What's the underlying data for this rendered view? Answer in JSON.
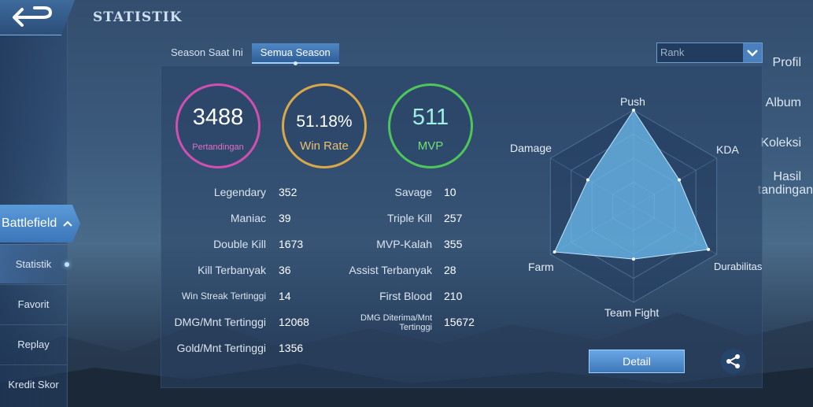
{
  "page_title": "STATISTIK",
  "sidebar": {
    "items": [
      {
        "label": "Profil"
      },
      {
        "label": "Album"
      },
      {
        "label": "Koleksi"
      },
      {
        "label_line1": "Hasil",
        "label_line2": "tandingan"
      }
    ],
    "battlefield": "Battlefield",
    "sub_items": [
      "Statistik",
      "Favorit",
      "Replay",
      "Kredit Skor"
    ]
  },
  "tabs": [
    "Season Saat Ini",
    "Semua Season"
  ],
  "rank_select": {
    "value": "Rank"
  },
  "rings": [
    {
      "value": "3488",
      "label": "Pertandingan",
      "color": "#d04fb0"
    },
    {
      "value": "51.18%",
      "label": "Win Rate",
      "color": "#d8a84a"
    },
    {
      "value": "511",
      "label": "MVP",
      "color": "#4fc65a"
    }
  ],
  "stats_left": [
    {
      "label": "Legendary",
      "value": "352"
    },
    {
      "label": "Maniac",
      "value": "39"
    },
    {
      "label": "Double Kill",
      "value": "1673"
    },
    {
      "label": "Kill Terbanyak",
      "value": "36"
    },
    {
      "label": "Win Streak Tertinggi",
      "value": "14"
    },
    {
      "label": "DMG/Mnt Tertinggi",
      "value": "12068"
    },
    {
      "label": "Gold/Mnt Tertinggi",
      "value": "1356"
    }
  ],
  "stats_right": [
    {
      "label": "Savage",
      "value": "10"
    },
    {
      "label": "Triple Kill",
      "value": "257"
    },
    {
      "label": "MVP-Kalah",
      "value": "355"
    },
    {
      "label": "Assist Terbanyak",
      "value": "28"
    },
    {
      "label": "First Blood",
      "value": "210"
    },
    {
      "label_line1": "DMG Diterima/Mnt",
      "label_line2": "Tertinggi",
      "value": "15672"
    }
  ],
  "radar": {
    "axes": [
      "Push",
      "KDA",
      "Durabilitas",
      "Team Fight",
      "Farm",
      "Damage"
    ],
    "values": [
      1.0,
      0.55,
      0.9,
      0.55,
      0.95,
      0.55
    ]
  },
  "detail_label": "Detail",
  "icons": {
    "back": "back-arrow-icon",
    "share": "share-icon",
    "dropdown": "chevron-down-icon"
  }
}
